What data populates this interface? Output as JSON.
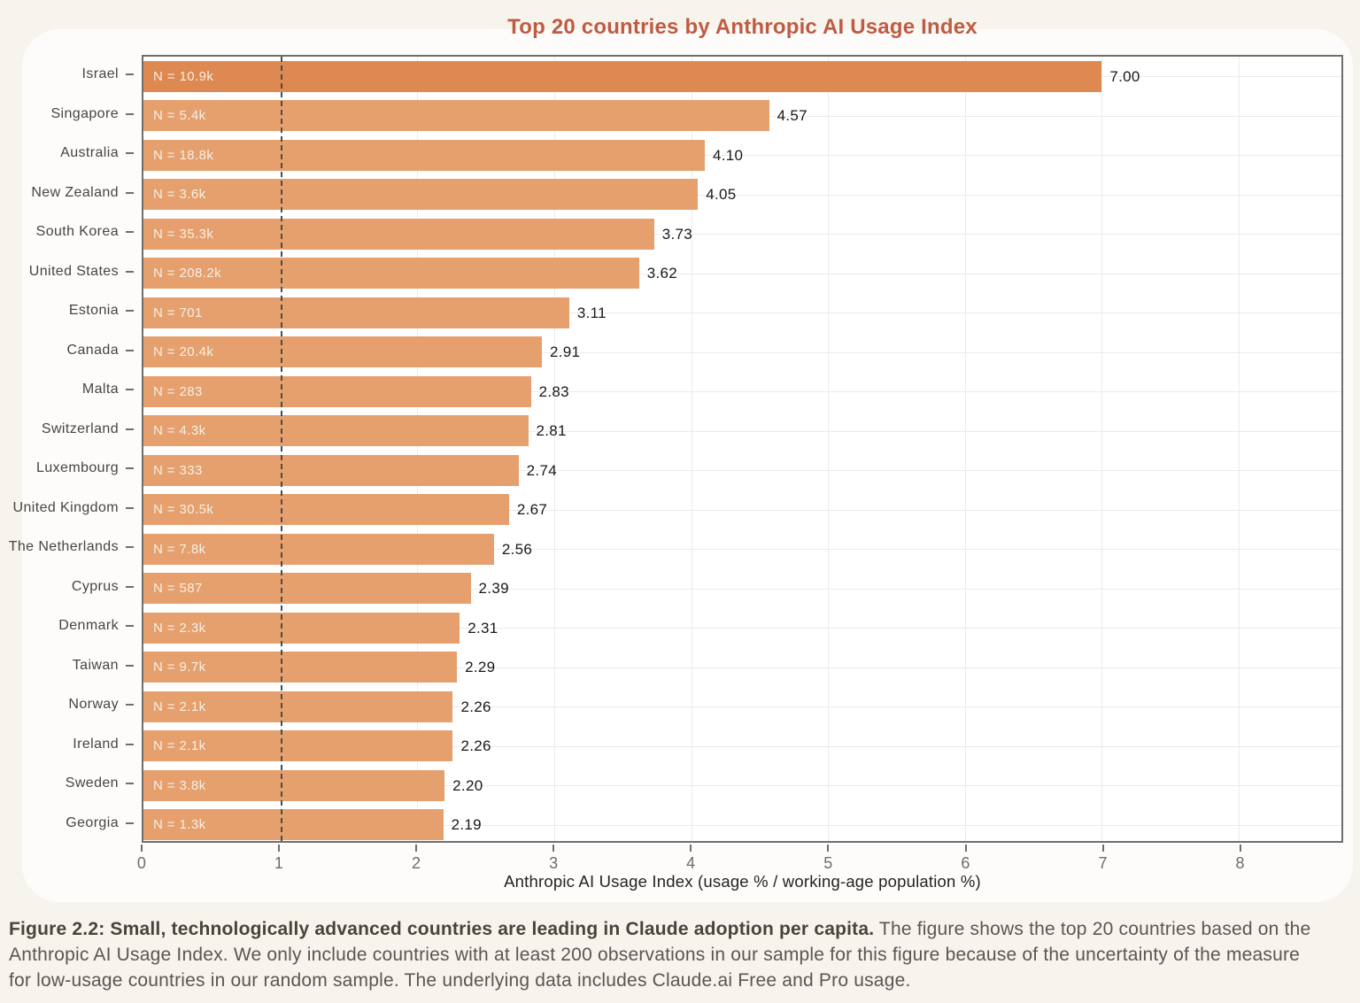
{
  "page": {
    "background": "#f6f4ec",
    "card_background": "#fdfcfa"
  },
  "chart_data": {
    "type": "bar",
    "orientation": "horizontal",
    "title": "Top 20 countries by Anthropic AI Usage Index",
    "xlabel": "Anthropic AI Usage Index (usage % / working-age population %)",
    "xlim": [
      0,
      8.75
    ],
    "x_ticks": [
      0,
      1,
      2,
      3,
      4,
      5,
      6,
      7,
      8
    ],
    "reference_line_x": 1,
    "grid": "on",
    "legend": "none",
    "categories": [
      "Israel",
      "Singapore",
      "Australia",
      "New Zealand",
      "South Korea",
      "United States",
      "Estonia",
      "Canada",
      "Malta",
      "Switzerland",
      "Luxembourg",
      "United Kingdom",
      "The Netherlands",
      "Cyprus",
      "Denmark",
      "Taiwan",
      "Norway",
      "Ireland",
      "Sweden",
      "Georgia"
    ],
    "values": [
      7.0,
      4.57,
      4.1,
      4.05,
      3.73,
      3.62,
      3.11,
      2.91,
      2.83,
      2.81,
      2.74,
      2.67,
      2.56,
      2.39,
      2.31,
      2.29,
      2.26,
      2.26,
      2.2,
      2.19
    ],
    "value_labels": [
      "7.00",
      "4.57",
      "4.10",
      "4.05",
      "3.73",
      "3.62",
      "3.11",
      "2.91",
      "2.83",
      "2.81",
      "2.74",
      "2.67",
      "2.56",
      "2.39",
      "2.31",
      "2.29",
      "2.26",
      "2.26",
      "2.20",
      "2.19"
    ],
    "n_labels": [
      "N = 10.9k",
      "N = 5.4k",
      "N = 18.8k",
      "N = 3.6k",
      "N = 35.3k",
      "N = 208.2k",
      "N = 701",
      "N = 20.4k",
      "N = 283",
      "N = 4.3k",
      "N = 333",
      "N = 30.5k",
      "N = 7.8k",
      "N = 587",
      "N = 2.3k",
      "N = 9.7k",
      "N = 2.1k",
      "N = 2.1k",
      "N = 3.8k",
      "N = 1.3k"
    ],
    "colors": {
      "bar": "#e5a06e",
      "bar_highlight_first": "#dd8951",
      "title": "#bf5b44",
      "value_label": "#181817",
      "n_label_text": "#f6efe5",
      "gridline": "#ebebe9",
      "reference_line": "#4c4c4a",
      "axis_spine": "#6e6e6c"
    }
  },
  "caption": {
    "bold": "Figure 2.2: Small, technologically advanced countries are leading in Claude adoption per capita.",
    "text": " The figure shows the top 20 countries based on the Anthropic AI Usage Index. We only include countries with at least 200 observations in our sample for this figure because of the uncertainty of the measure for low-usage countries in our random sample. The underlying data includes Claude.ai Free and Pro usage."
  }
}
